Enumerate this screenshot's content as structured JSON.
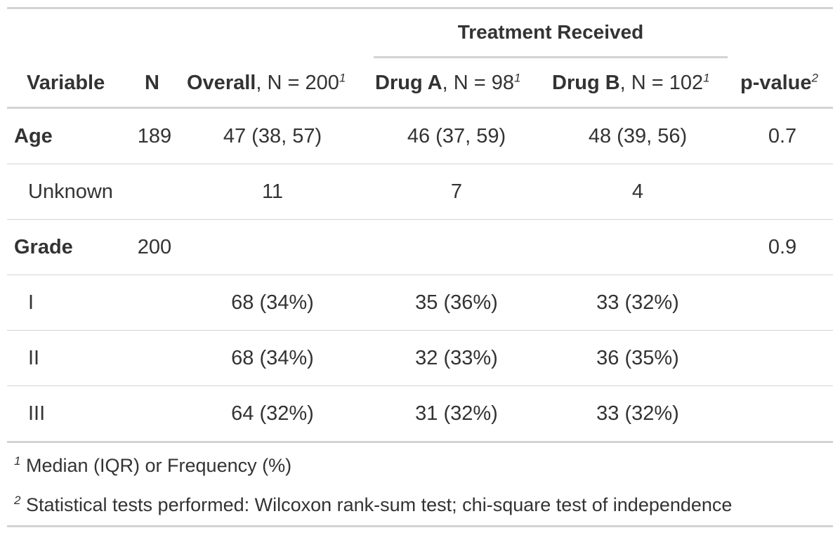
{
  "table": {
    "spanner": "Treatment Received",
    "headers": {
      "variable": "Variable",
      "n": "N",
      "overall_bold": "Overall",
      "overall_rest": ", N = 200",
      "overall_mark": "1",
      "drug_a_bold": "Drug A",
      "drug_a_rest": ", N = 98",
      "drug_a_mark": "1",
      "drug_b_bold": "Drug B",
      "drug_b_rest": ", N = 102",
      "drug_b_mark": "1",
      "pvalue_bold": "p-value",
      "pvalue_mark": "2"
    },
    "rows": [
      {
        "label": "Age",
        "n": "189",
        "overall": "47 (38, 57)",
        "drug_a": "46 (37, 59)",
        "drug_b": "48 (39, 56)",
        "p": "0.7"
      },
      {
        "label": "Unknown",
        "n": "",
        "overall": "11",
        "drug_a": "7",
        "drug_b": "4",
        "p": ""
      },
      {
        "label": "Grade",
        "n": "200",
        "overall": "",
        "drug_a": "",
        "drug_b": "",
        "p": "0.9"
      },
      {
        "label": "I",
        "n": "",
        "overall": "68 (34%)",
        "drug_a": "35 (36%)",
        "drug_b": "33 (32%)",
        "p": ""
      },
      {
        "label": "II",
        "n": "",
        "overall": "68 (34%)",
        "drug_a": "32 (33%)",
        "drug_b": "36 (35%)",
        "p": ""
      },
      {
        "label": "III",
        "n": "",
        "overall": "64 (32%)",
        "drug_a": "31 (32%)",
        "drug_b": "33 (32%)",
        "p": ""
      }
    ],
    "footnotes": [
      {
        "mark": "1",
        "text": "Median (IQR) or Frequency (%)"
      },
      {
        "mark": "2",
        "text": "Statistical tests performed: Wilcoxon rank-sum test; chi-square test of independence"
      }
    ]
  }
}
